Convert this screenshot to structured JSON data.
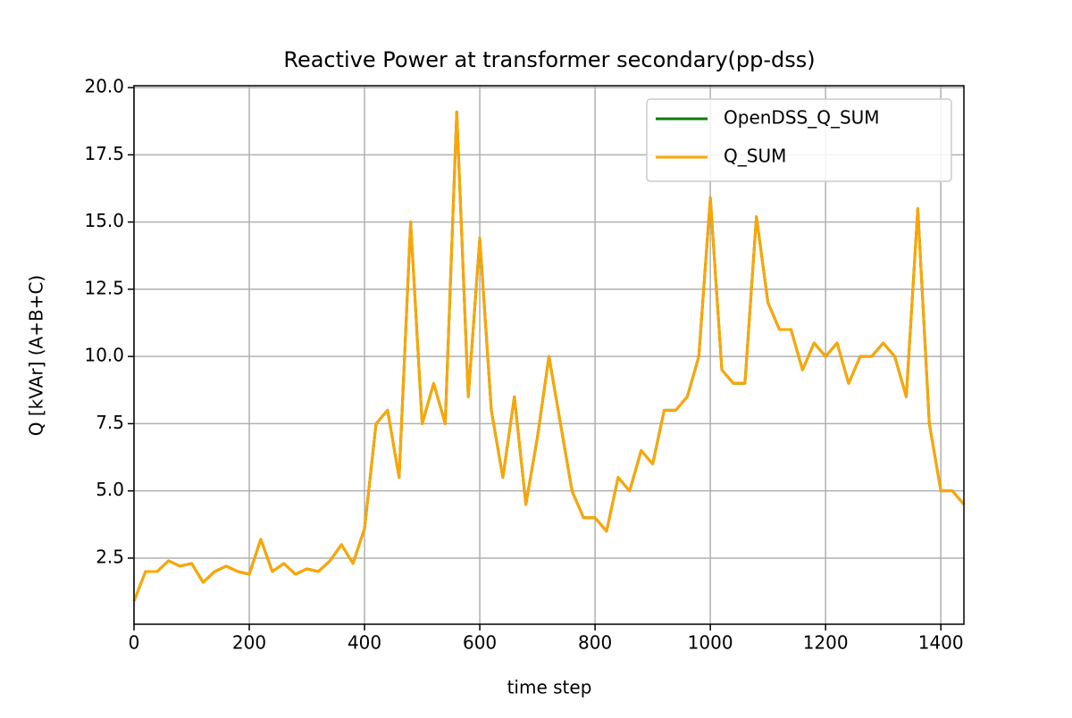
{
  "chart_data": {
    "type": "line",
    "title": "Reactive Power at transformer secondary(pp-dss)",
    "xlabel": "time step",
    "ylabel": "Q [kVAr] (A+B+C)",
    "x": [
      0,
      20,
      40,
      60,
      80,
      100,
      120,
      140,
      160,
      180,
      200,
      220,
      240,
      260,
      280,
      300,
      320,
      340,
      360,
      380,
      400,
      420,
      440,
      460,
      480,
      500,
      520,
      540,
      560,
      580,
      600,
      620,
      640,
      660,
      680,
      700,
      720,
      740,
      760,
      780,
      800,
      820,
      840,
      860,
      880,
      900,
      920,
      940,
      960,
      980,
      1000,
      1020,
      1040,
      1060,
      1080,
      1100,
      1120,
      1140,
      1160,
      1180,
      1200,
      1220,
      1240,
      1260,
      1280,
      1300,
      1320,
      1340,
      1360,
      1380,
      1400,
      1420,
      1440
    ],
    "series": [
      {
        "name": "OpenDSS_Q_SUM",
        "color": "#008000",
        "values": [
          0.9,
          2.0,
          2.0,
          2.4,
          2.2,
          2.3,
          1.6,
          2.0,
          2.2,
          2.0,
          1.9,
          3.2,
          2.0,
          2.3,
          1.9,
          2.1,
          2.0,
          2.4,
          3.0,
          2.3,
          3.6,
          7.5,
          8.0,
          5.5,
          15.0,
          7.5,
          9.0,
          7.5,
          19.1,
          8.5,
          14.4,
          8.0,
          5.5,
          8.5,
          4.5,
          7.0,
          10.0,
          7.5,
          5.0,
          4.0,
          4.0,
          3.5,
          5.5,
          5.0,
          6.5,
          6.0,
          8.0,
          8.0,
          8.5,
          10.0,
          15.9,
          9.5,
          9.0,
          9.0,
          15.2,
          12.0,
          11.0,
          11.0,
          9.5,
          10.5,
          10.0,
          10.5,
          9.0,
          10.0,
          10.0,
          10.5,
          10.0,
          8.5,
          15.5,
          7.5,
          5.0,
          5.0,
          4.5
        ]
      },
      {
        "name": "Q_SUM",
        "color": "#ffa500",
        "values": [
          0.9,
          2.0,
          2.0,
          2.4,
          2.2,
          2.3,
          1.6,
          2.0,
          2.2,
          2.0,
          1.9,
          3.2,
          2.0,
          2.3,
          1.9,
          2.1,
          2.0,
          2.4,
          3.0,
          2.3,
          3.6,
          7.5,
          8.0,
          5.5,
          15.0,
          7.5,
          9.0,
          7.5,
          19.1,
          8.5,
          14.4,
          8.0,
          5.5,
          8.5,
          4.5,
          7.0,
          10.0,
          7.5,
          5.0,
          4.0,
          4.0,
          3.5,
          5.5,
          5.0,
          6.5,
          6.0,
          8.0,
          8.0,
          8.5,
          10.0,
          15.9,
          9.5,
          9.0,
          9.0,
          15.2,
          12.0,
          11.0,
          11.0,
          9.5,
          10.5,
          10.0,
          10.5,
          9.0,
          10.0,
          10.0,
          10.5,
          10.0,
          8.5,
          15.5,
          7.5,
          5.0,
          5.0,
          4.5
        ]
      }
    ],
    "xlim": [
      0,
      1440
    ],
    "ylim": [
      0.04,
      20.07
    ],
    "xticks": [
      0,
      200,
      400,
      600,
      800,
      1000,
      1200,
      1400
    ],
    "yticks": [
      2.5,
      {
        "value": 5,
        "label": "5.0"
      },
      7.5,
      {
        "value": 10,
        "label": "10.0"
      },
      12.5,
      {
        "value": 15,
        "label": "15.0"
      },
      17.5,
      {
        "value": 20,
        "label": "20.0"
      }
    ],
    "grid": true,
    "legend": "upper right"
  }
}
